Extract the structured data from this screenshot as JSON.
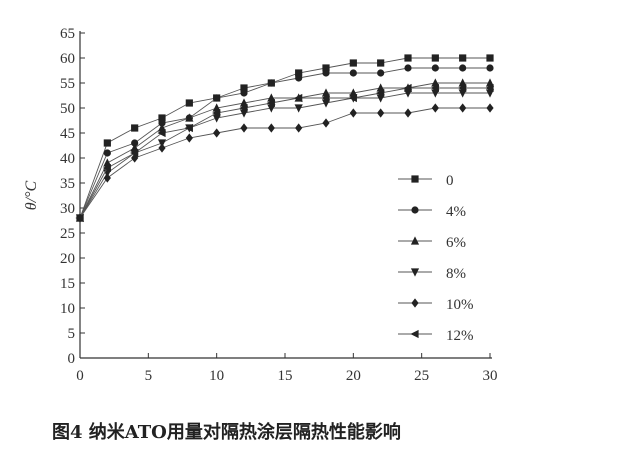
{
  "caption": "图4  纳米ATO用量对隔热涂层隔热性能影响",
  "chart_data": {
    "type": "line",
    "ylabel": "θ/°C",
    "xlabel": "",
    "xlim": [
      0,
      30
    ],
    "ylim": [
      0,
      65
    ],
    "x_ticks": [
      0,
      5,
      10,
      15,
      20,
      25,
      30
    ],
    "y_ticks": [
      0,
      5,
      10,
      15,
      20,
      25,
      30,
      35,
      40,
      45,
      50,
      55,
      60,
      65
    ],
    "x": [
      0,
      2,
      4,
      6,
      8,
      10,
      12,
      14,
      16,
      18,
      20,
      22,
      24,
      26,
      28,
      30
    ],
    "legend_position": "right",
    "grid": false,
    "series": [
      {
        "name": "0",
        "marker": "square",
        "values": [
          28,
          43,
          46,
          48,
          51,
          52,
          54,
          55,
          57,
          58,
          59,
          59,
          60,
          60,
          60,
          60
        ]
      },
      {
        "name": "4%",
        "marker": "circle",
        "values": [
          28,
          41,
          43,
          47,
          48,
          52,
          53,
          55,
          56,
          57,
          57,
          57,
          58,
          58,
          58,
          58
        ]
      },
      {
        "name": "6%",
        "marker": "triangle-up",
        "values": [
          28,
          39,
          42,
          46,
          48,
          50,
          51,
          52,
          52,
          53,
          53,
          54,
          54,
          55,
          55,
          55
        ]
      },
      {
        "name": "8%",
        "marker": "triangle-down",
        "values": [
          28,
          37,
          41,
          43,
          46,
          48,
          49,
          50,
          50,
          51,
          52,
          52,
          53,
          53,
          53,
          53
        ]
      },
      {
        "name": "10%",
        "marker": "diamond",
        "values": [
          28,
          36,
          40,
          42,
          44,
          45,
          46,
          46,
          46,
          47,
          49,
          49,
          49,
          50,
          50,
          50
        ]
      },
      {
        "name": "12%",
        "marker": "triangle-left",
        "values": [
          28,
          38,
          41,
          45,
          46,
          49,
          50,
          51,
          52,
          52,
          52,
          53,
          54,
          54,
          54,
          54
        ]
      }
    ]
  }
}
